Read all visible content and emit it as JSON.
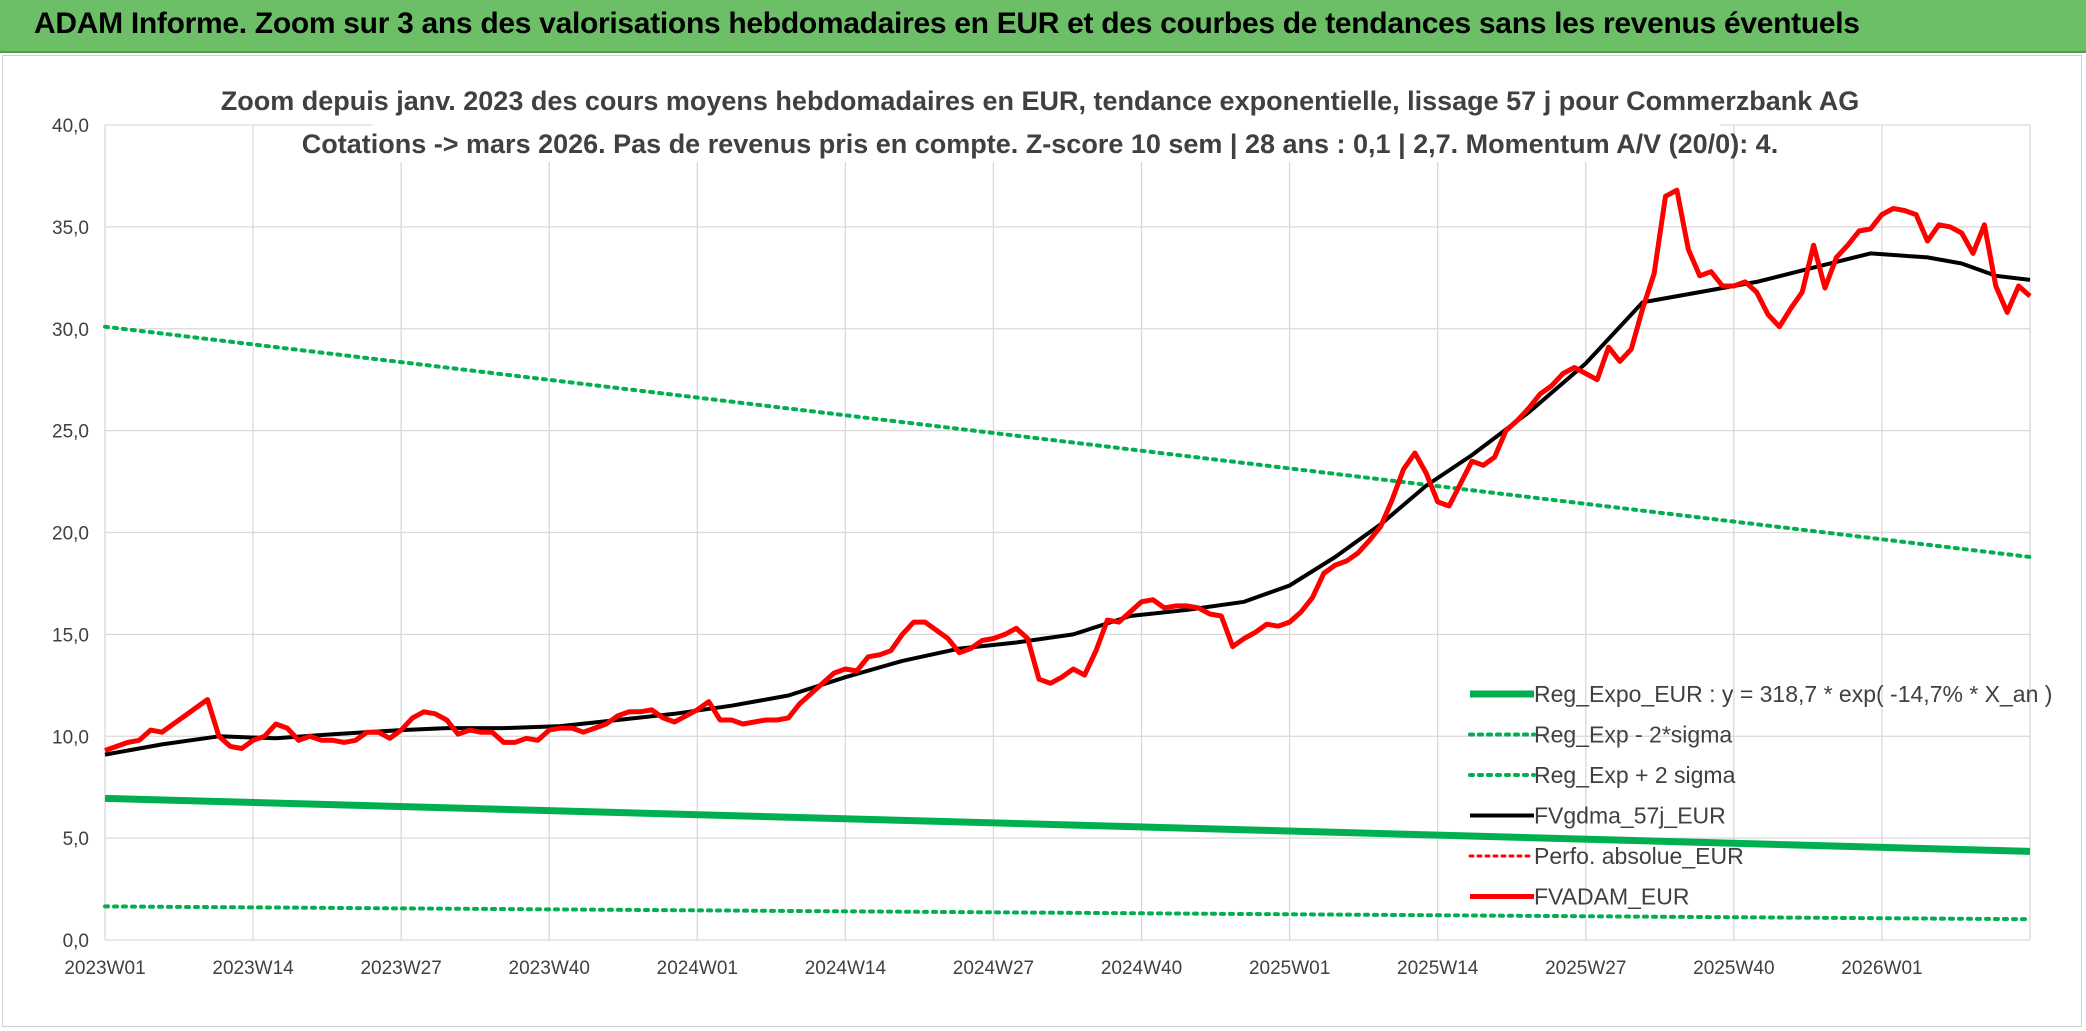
{
  "header": {
    "title": "ADAM Informe. Zoom sur 3 ans des valorisations hebdomadaires en EUR et des courbes de tendances sans les revenus éventuels"
  },
  "colors": {
    "header_bg": "#6dbf67",
    "reg_expo": "#00b050",
    "reg_band": "#00b050",
    "fvgdma": "#000000",
    "perfo": "#ff0000",
    "fvadam": "#ff0000",
    "grid": "#d9d9d9"
  },
  "chart_data": {
    "type": "line",
    "title_lines": [
      "Zoom depuis janv. 2023 des cours moyens hebdomadaires en EUR, tendance exponentielle, lissage 57 j pour Commerzbank AG",
      "Cotations -> mars 2026. Pas de revenus pris en compte. Z-score 10 sem | 28 ans : 0,1 | 2,7. Momentum A/V (20/0): 4."
    ],
    "x_ticks": [
      "2023W01",
      "2023W14",
      "2023W27",
      "2023W40",
      "2024W01",
      "2024W14",
      "2024W27",
      "2024W40",
      "2025W01",
      "2025W14",
      "2025W27",
      "2025W40",
      "2026W01"
    ],
    "x_range": [
      0,
      169
    ],
    "x_unit": "week index from 2023W01",
    "ylim": [
      0,
      40
    ],
    "y_ticks": [
      "0,0",
      "5,0",
      "10,0",
      "15,0",
      "20,0",
      "25,0",
      "30,0",
      "35,0",
      "40,0"
    ],
    "grid": true,
    "legend_position": "bottom-right",
    "series": [
      {
        "name": "Reg_Expo_EUR : y = 318,7 * exp( -14,7% *  X_an )",
        "style": "solid-thick",
        "x": [
          0,
          169
        ],
        "values": [
          6.95,
          4.35
        ]
      },
      {
        "name": "Reg_Exp - 2*sigma",
        "style": "dotted",
        "x": [
          0,
          169
        ],
        "values": [
          1.65,
          1.02
        ]
      },
      {
        "name": "Reg_Exp + 2 sigma",
        "style": "dotted",
        "x": [
          0,
          169
        ],
        "values": [
          30.1,
          18.8
        ]
      },
      {
        "name": "FVgdma_57j_EUR",
        "style": "solid",
        "x": [
          0,
          5,
          10,
          15,
          20,
          26,
          30,
          35,
          40,
          45,
          50,
          55,
          60,
          65,
          70,
          75,
          80,
          85,
          90,
          95,
          100,
          104,
          108,
          112,
          116,
          120,
          125,
          130,
          135,
          140,
          145,
          150,
          155,
          160,
          163,
          166,
          169
        ],
        "values": [
          9.1,
          9.6,
          10.0,
          9.9,
          10.1,
          10.3,
          10.4,
          10.4,
          10.5,
          10.8,
          11.1,
          11.5,
          12.0,
          12.9,
          13.7,
          14.3,
          14.6,
          15.0,
          15.9,
          16.2,
          16.6,
          17.4,
          18.8,
          20.4,
          22.3,
          23.8,
          25.9,
          28.3,
          31.3,
          31.8,
          32.3,
          33.0,
          33.7,
          33.5,
          33.2,
          32.6,
          32.4
        ]
      },
      {
        "name": "Perfo. absolue_EUR",
        "style": "dotted",
        "x": [],
        "values": []
      },
      {
        "name": "FVADAM_EUR",
        "style": "solid-thick",
        "x": [
          0,
          2,
          3,
          4,
          5,
          6,
          7,
          8,
          9,
          10,
          11,
          12,
          13,
          14,
          15,
          16,
          17,
          18,
          19,
          20,
          21,
          22,
          23,
          24,
          25,
          26,
          27,
          28,
          29,
          30,
          31,
          32,
          33,
          34,
          35,
          36,
          37,
          38,
          39,
          40,
          41,
          42,
          43,
          44,
          45,
          46,
          47,
          48,
          49,
          50,
          51,
          52,
          53,
          54,
          55,
          56,
          57,
          58,
          59,
          60,
          61,
          62,
          63,
          64,
          65,
          66,
          67,
          68,
          69,
          70,
          71,
          72,
          73,
          74,
          75,
          76,
          77,
          78,
          79,
          80,
          81,
          82,
          83,
          84,
          85,
          86,
          87,
          88,
          89,
          90,
          91,
          92,
          93,
          94,
          95,
          96,
          97,
          98,
          99,
          100,
          101,
          102,
          103,
          104,
          105,
          106,
          107,
          108,
          109,
          110,
          111,
          112,
          113,
          114,
          115,
          116,
          117,
          118,
          119,
          120,
          121,
          122,
          123,
          124,
          125,
          126,
          127,
          128,
          129,
          130,
          131,
          132,
          133,
          134,
          135,
          136,
          137,
          138,
          139,
          140,
          141,
          142,
          143,
          144,
          145,
          146,
          147,
          148,
          149,
          150,
          151,
          152,
          153,
          154,
          155,
          156,
          157,
          158,
          159,
          160,
          161,
          162,
          163,
          164,
          165,
          166,
          167,
          168,
          169
        ],
        "values": [
          9.3,
          9.7,
          9.8,
          10.3,
          10.2,
          10.6,
          11.0,
          11.4,
          11.8,
          10.0,
          9.5,
          9.4,
          9.8,
          10.0,
          10.6,
          10.4,
          9.8,
          10.0,
          9.8,
          9.8,
          9.7,
          9.8,
          10.2,
          10.2,
          9.9,
          10.3,
          10.9,
          11.2,
          11.1,
          10.8,
          10.1,
          10.3,
          10.2,
          10.2,
          9.7,
          9.7,
          9.9,
          9.8,
          10.3,
          10.4,
          10.4,
          10.2,
          10.4,
          10.6,
          11.0,
          11.2,
          11.2,
          11.3,
          10.9,
          10.7,
          11.0,
          11.3,
          11.7,
          10.8,
          10.8,
          10.6,
          10.7,
          10.8,
          10.8,
          10.9,
          11.6,
          12.1,
          12.6,
          13.1,
          13.3,
          13.2,
          13.9,
          14.0,
          14.2,
          15.0,
          15.6,
          15.6,
          15.2,
          14.8,
          14.1,
          14.3,
          14.7,
          14.8,
          15.0,
          15.3,
          14.8,
          12.8,
          12.6,
          12.9,
          13.3,
          13.0,
          14.2,
          15.7,
          15.6,
          16.1,
          16.6,
          16.7,
          16.3,
          16.4,
          16.4,
          16.3,
          16.0,
          15.9,
          14.4,
          14.8,
          15.1,
          15.5,
          15.4,
          15.6,
          16.1,
          16.8,
          18.0,
          18.4,
          18.6,
          19.0,
          19.6,
          20.3,
          21.6,
          23.1,
          23.9,
          22.9,
          21.5,
          21.3,
          22.4,
          23.5,
          23.3,
          23.7,
          25.0,
          25.5,
          26.1,
          26.8,
          27.2,
          27.8,
          28.1,
          27.8,
          27.5,
          29.1,
          28.4,
          29.0,
          31.0,
          32.7,
          36.5,
          36.8,
          33.9,
          32.6,
          32.8,
          32.1,
          32.1,
          32.3,
          31.8,
          30.7,
          30.1,
          31.0,
          31.8,
          34.1,
          32.0,
          33.5,
          34.1,
          34.8,
          34.9,
          35.6,
          35.9,
          35.8,
          35.6,
          34.3,
          35.1,
          35.0,
          34.7,
          33.7,
          35.1,
          32.1,
          30.8,
          32.1,
          31.6
        ]
      }
    ]
  }
}
